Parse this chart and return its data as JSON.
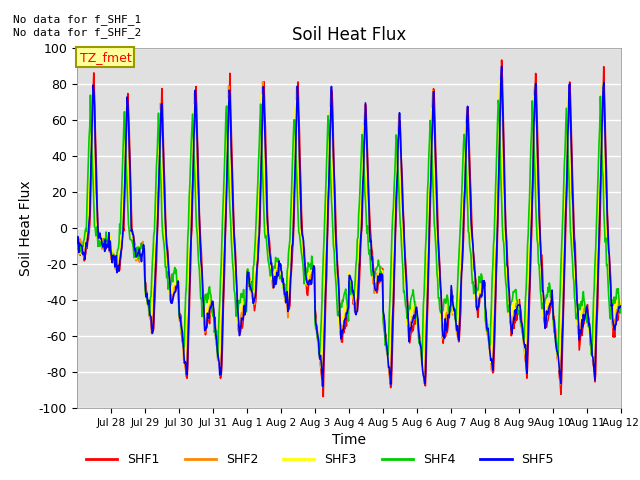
{
  "title": "Soil Heat Flux",
  "ylabel": "Soil Heat Flux",
  "xlabel": "Time",
  "ylim": [
    -100,
    100
  ],
  "yticks": [
    -100,
    -80,
    -60,
    -40,
    -20,
    0,
    20,
    40,
    60,
    80,
    100
  ],
  "annotation_text": "No data for f_SHF_1\nNo data for f_SHF_2",
  "legend_box_text": "TZ_fmet",
  "legend_box_color": "#ffff99",
  "legend_box_edge": "#999900",
  "series_colors": [
    "#ff0000",
    "#ff8800",
    "#ffff00",
    "#00cc00",
    "#0000ff"
  ],
  "series_names": [
    "SHF1",
    "SHF2",
    "SHF3",
    "SHF4",
    "SHF5"
  ],
  "bg_color": "#e0e0e0",
  "tick_dates": [
    "Jul 28",
    "Jul 29",
    "Jul 30",
    "Jul 31",
    "Aug 1",
    "Aug 2",
    "Aug 3",
    "Aug 4",
    "Aug 5",
    "Aug 6",
    "Aug 7",
    "Aug 8",
    "Aug 9",
    "Aug 10",
    "Aug 11",
    "Aug 12"
  ],
  "day_peaks": [
    88,
    80,
    77,
    82,
    85,
    88,
    85,
    80,
    70,
    65,
    80,
    70,
    95,
    90,
    85,
    88
  ],
  "day_troughs": [
    -15,
    -25,
    -60,
    -85,
    -85,
    -45,
    -48,
    -90,
    -50,
    -90,
    -90,
    -65,
    -85,
    -80,
    -90,
    -85
  ],
  "peak_offsets_per_series": [
    0.0,
    0.03,
    0.06,
    0.1,
    0.01
  ],
  "amp_scales_per_series": [
    1.0,
    0.95,
    0.88,
    0.8,
    0.97
  ]
}
